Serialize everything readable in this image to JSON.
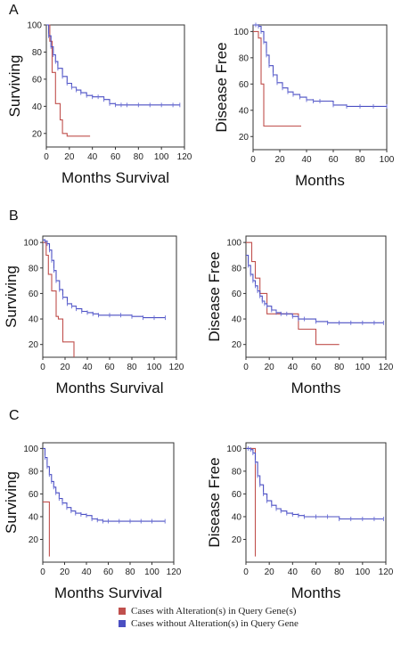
{
  "colors": {
    "altered": "#c0504d",
    "unaltered": "#4b4fc2",
    "axis": "#333333",
    "marker": "#6a6fd6"
  },
  "panels": [
    {
      "label": "A"
    },
    {
      "label": "B"
    },
    {
      "label": "C"
    }
  ],
  "legend": {
    "altered_label": "Cases with Alteration(s) in Query Gene(s)",
    "unaltered_label": "Cases without Alteration(s) in Query Gene"
  },
  "chart_data": [
    {
      "type": "line",
      "panel": "A",
      "xlabel": "Months Survival",
      "ylabel": "Surviving",
      "xlim": [
        0,
        120
      ],
      "ylim": [
        10,
        100
      ],
      "xticks": [
        0,
        20,
        40,
        60,
        80,
        100,
        120
      ],
      "yticks": [
        20,
        40,
        60,
        80,
        100
      ],
      "series": [
        {
          "key": "altered",
          "x": [
            0,
            3,
            5,
            8,
            12,
            14,
            18,
            38
          ],
          "y": [
            100,
            88,
            65,
            42,
            30,
            20,
            18,
            18
          ]
        },
        {
          "key": "unaltered",
          "x": [
            0,
            2,
            4,
            6,
            8,
            10,
            14,
            18,
            22,
            26,
            30,
            35,
            40,
            45,
            50,
            55,
            60,
            65,
            70,
            80,
            90,
            100,
            110,
            116
          ],
          "y": [
            100,
            92,
            84,
            78,
            73,
            68,
            62,
            57,
            54,
            52,
            50,
            48,
            47,
            47,
            45,
            42,
            41,
            41,
            41,
            41,
            41,
            41,
            41,
            41
          ]
        }
      ]
    },
    {
      "type": "line",
      "panel": "A",
      "xlabel": "Months",
      "ylabel": "Disease Free",
      "xlim": [
        0,
        100
      ],
      "ylim": [
        10,
        105
      ],
      "xticks": [
        0,
        20,
        40,
        60,
        80,
        100
      ],
      "yticks": [
        20,
        40,
        60,
        80,
        100
      ],
      "series": [
        {
          "key": "altered",
          "x": [
            0,
            2,
            4,
            6,
            8,
            36
          ],
          "y": [
            100,
            100,
            95,
            60,
            28,
            28
          ]
        },
        {
          "key": "unaltered",
          "x": [
            0,
            2,
            4,
            6,
            8,
            10,
            12,
            15,
            18,
            22,
            26,
            30,
            35,
            40,
            45,
            50,
            60,
            70,
            80,
            90,
            100
          ],
          "y": [
            105,
            105,
            104,
            100,
            92,
            82,
            74,
            67,
            61,
            57,
            54,
            52,
            50,
            48,
            47,
            47,
            44,
            43,
            43,
            43,
            43
          ]
        }
      ]
    },
    {
      "type": "line",
      "panel": "B",
      "xlabel": "Months Survival",
      "ylabel": "Surviving",
      "xlim": [
        0,
        120
      ],
      "ylim": [
        10,
        105
      ],
      "xticks": [
        0,
        20,
        40,
        60,
        80,
        100,
        120
      ],
      "yticks": [
        20,
        40,
        60,
        80,
        100
      ],
      "series": [
        {
          "key": "altered",
          "x": [
            0,
            3,
            5,
            8,
            12,
            14,
            18,
            28,
            28
          ],
          "y": [
            100,
            90,
            75,
            62,
            42,
            40,
            22,
            22,
            10
          ]
        },
        {
          "key": "unaltered",
          "x": [
            0,
            2,
            4,
            6,
            8,
            10,
            12,
            15,
            18,
            22,
            26,
            30,
            35,
            40,
            45,
            50,
            60,
            70,
            80,
            90,
            100,
            110
          ],
          "y": [
            102,
            101,
            99,
            94,
            86,
            78,
            70,
            63,
            57,
            52,
            50,
            48,
            46,
            45,
            44,
            43,
            43,
            43,
            42,
            41,
            41,
            41
          ]
        }
      ]
    },
    {
      "type": "line",
      "panel": "B",
      "xlabel": "Months",
      "ylabel": "Disease Free",
      "xlim": [
        0,
        120
      ],
      "ylim": [
        10,
        105
      ],
      "xticks": [
        0,
        20,
        40,
        60,
        80,
        100,
        120
      ],
      "yticks": [
        20,
        40,
        60,
        80,
        100
      ],
      "series": [
        {
          "key": "altered",
          "x": [
            0,
            3,
            5,
            8,
            12,
            18,
            35,
            45,
            55,
            60,
            80
          ],
          "y": [
            100,
            100,
            85,
            72,
            60,
            44,
            44,
            32,
            32,
            20,
            20
          ]
        },
        {
          "key": "unaltered",
          "x": [
            0,
            2,
            4,
            6,
            8,
            10,
            12,
            14,
            16,
            18,
            22,
            26,
            30,
            35,
            40,
            45,
            50,
            60,
            70,
            80,
            90,
            100,
            110,
            118
          ],
          "y": [
            90,
            82,
            75,
            70,
            66,
            62,
            58,
            54,
            52,
            50,
            47,
            45,
            44,
            44,
            42,
            40,
            40,
            38,
            37,
            37,
            37,
            37,
            37,
            37
          ]
        }
      ]
    },
    {
      "type": "line",
      "panel": "C",
      "xlabel": "Months Survival",
      "ylabel": "Surviving",
      "xlim": [
        0,
        120
      ],
      "ylim": [
        0,
        105
      ],
      "xticks": [
        0,
        20,
        40,
        60,
        80,
        100,
        120
      ],
      "yticks": [
        20,
        40,
        60,
        80,
        100
      ],
      "series": [
        {
          "key": "altered",
          "x": [
            0,
            6,
            6
          ],
          "y": [
            53,
            53,
            5
          ]
        },
        {
          "key": "unaltered",
          "x": [
            0,
            2,
            4,
            6,
            8,
            10,
            12,
            15,
            18,
            22,
            26,
            30,
            35,
            40,
            45,
            50,
            55,
            60,
            70,
            80,
            90,
            100,
            112
          ],
          "y": [
            100,
            92,
            84,
            77,
            71,
            66,
            61,
            56,
            52,
            48,
            45,
            43,
            42,
            41,
            38,
            37,
            36,
            36,
            36,
            36,
            36,
            36,
            36
          ]
        }
      ]
    },
    {
      "type": "line",
      "panel": "C",
      "xlabel": "Months",
      "ylabel": "Disease Free",
      "xlim": [
        0,
        120
      ],
      "ylim": [
        0,
        105
      ],
      "xticks": [
        0,
        20,
        40,
        60,
        80,
        100,
        120
      ],
      "yticks": [
        20,
        40,
        60,
        80,
        100
      ],
      "series": [
        {
          "key": "altered",
          "x": [
            0,
            8,
            8
          ],
          "y": [
            100,
            100,
            5
          ]
        },
        {
          "key": "unaltered",
          "x": [
            0,
            2,
            4,
            6,
            8,
            10,
            12,
            15,
            18,
            22,
            26,
            30,
            35,
            40,
            45,
            50,
            60,
            70,
            80,
            90,
            100,
            110,
            118
          ],
          "y": [
            100,
            100,
            99,
            96,
            88,
            76,
            68,
            60,
            54,
            50,
            47,
            45,
            43,
            42,
            41,
            40,
            40,
            40,
            38,
            38,
            38,
            38,
            38
          ]
        }
      ]
    }
  ]
}
